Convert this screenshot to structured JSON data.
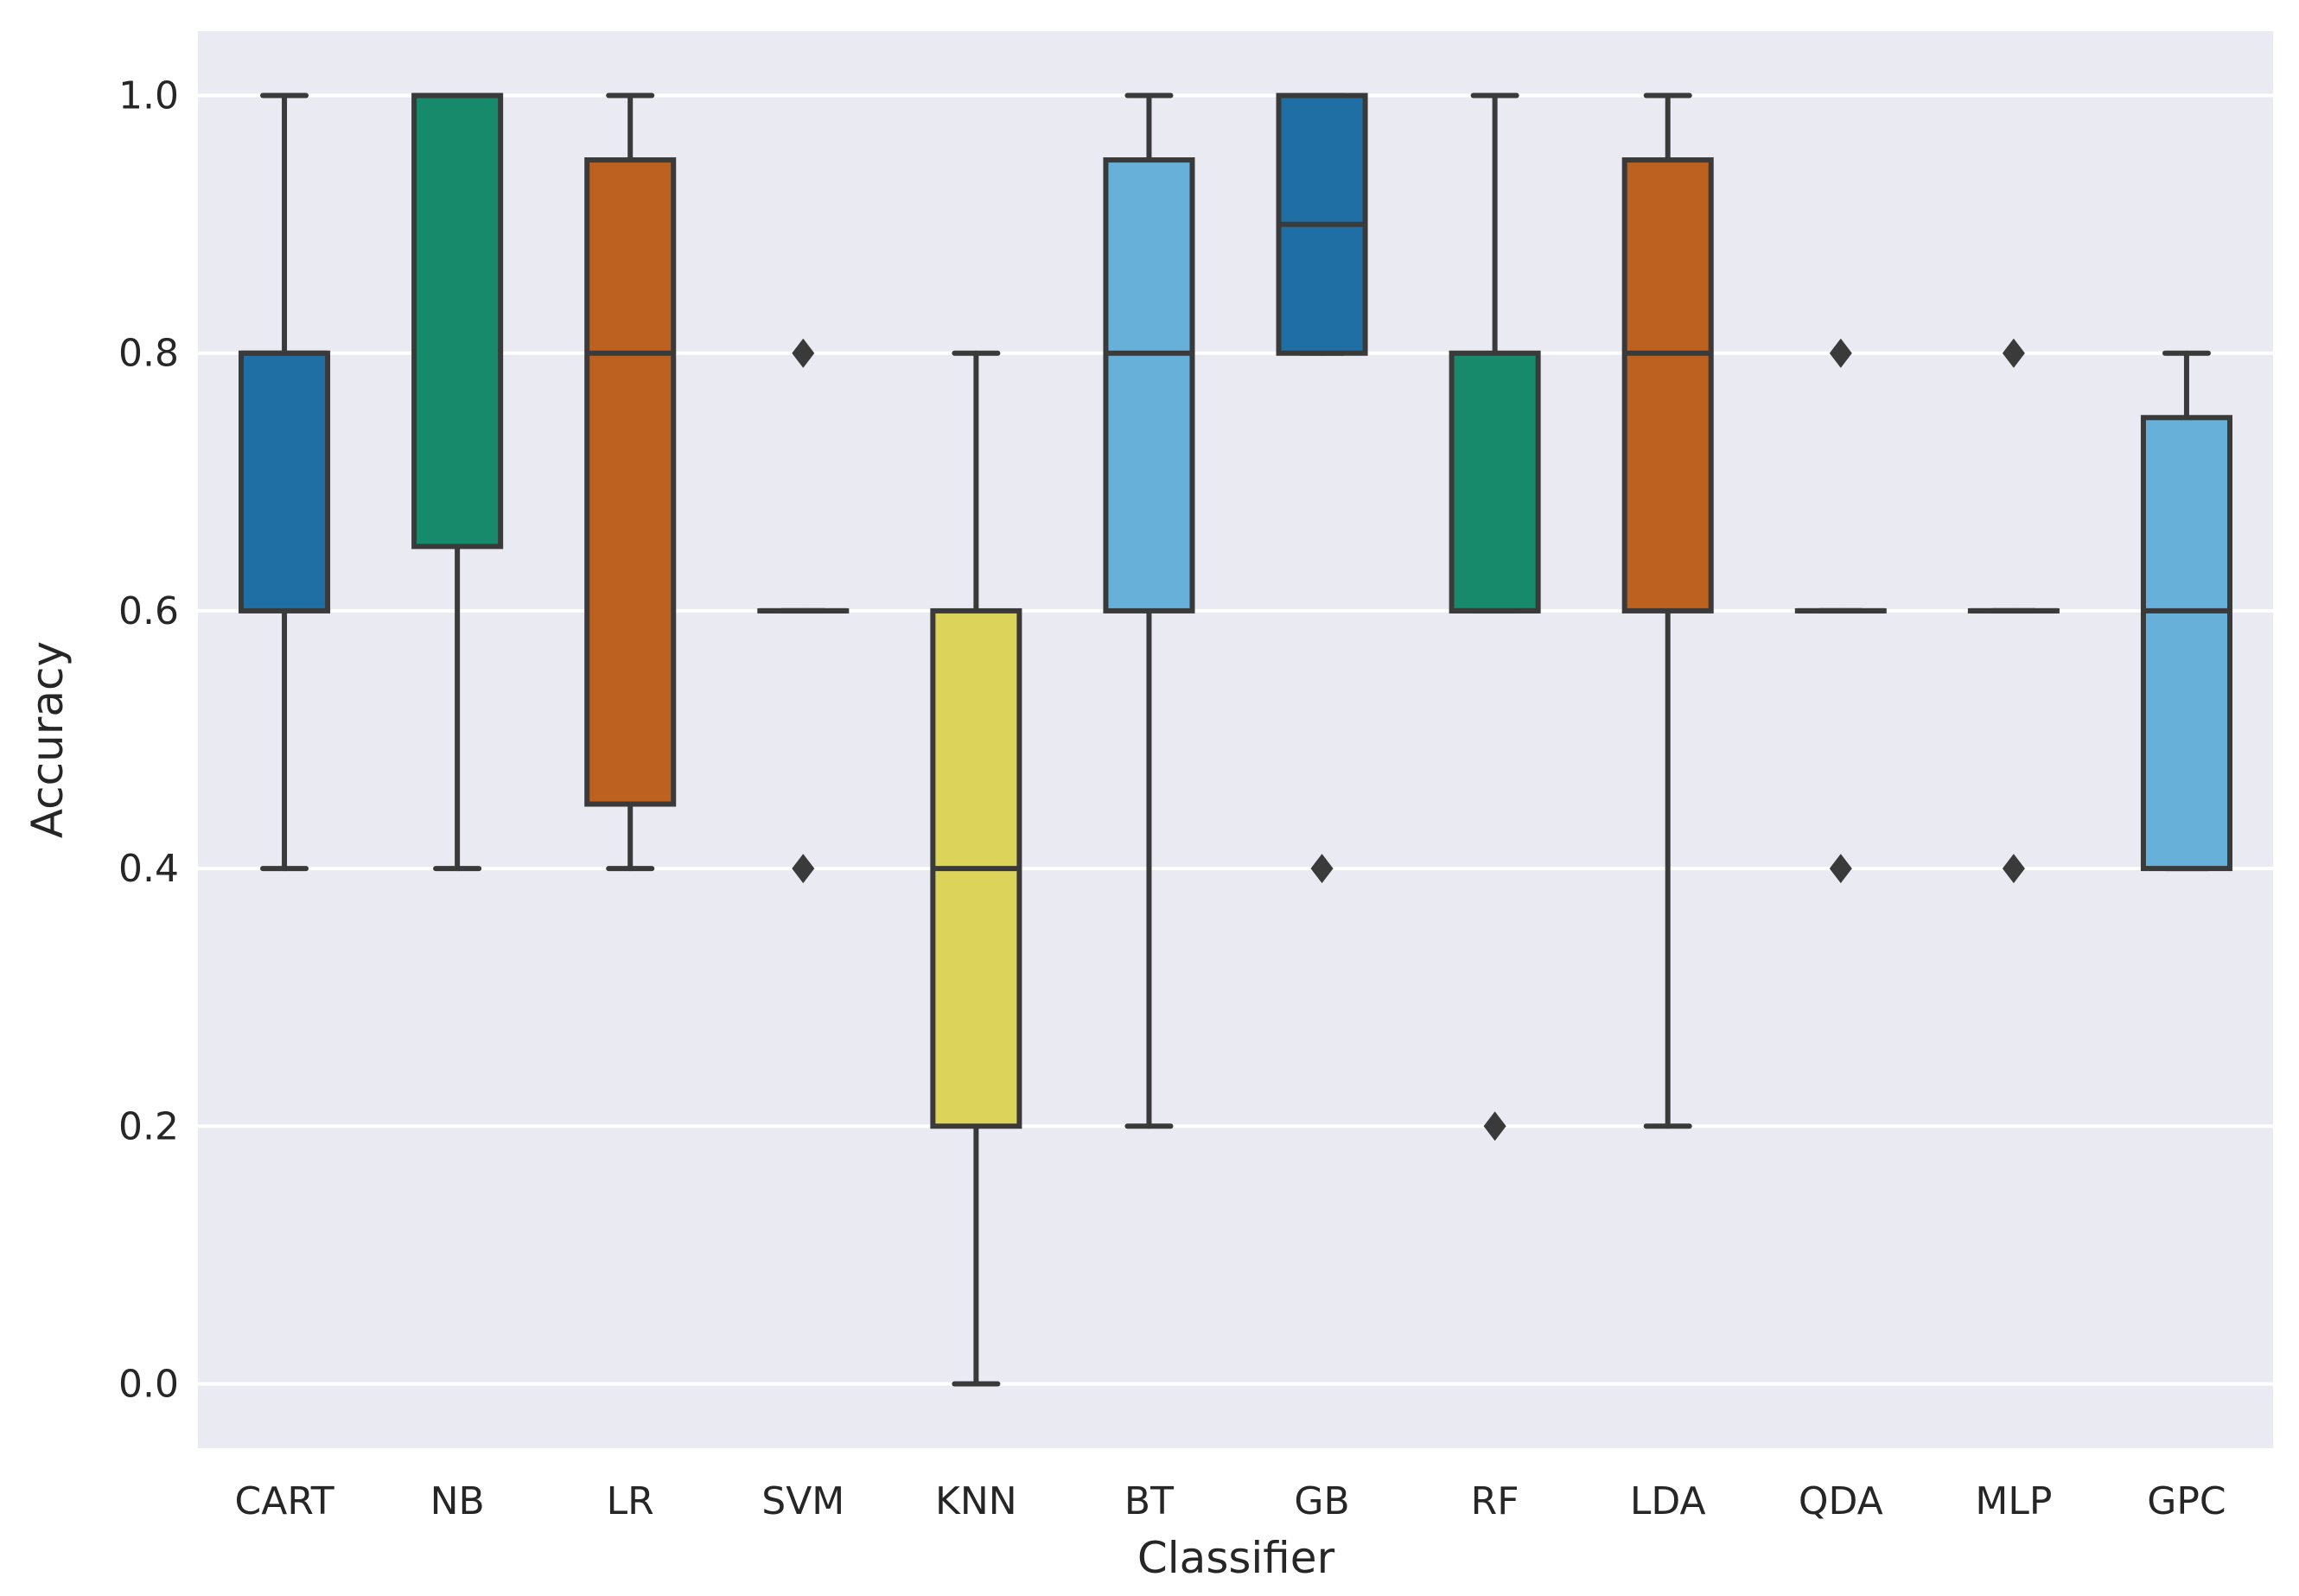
{
  "chart_data": {
    "type": "box",
    "title": "",
    "xlabel": "Classifier",
    "ylabel": "Accuracy",
    "ylim": [
      -0.05,
      1.05
    ],
    "y_ticks": [
      "0.0",
      "0.2",
      "0.4",
      "0.6",
      "0.8",
      "1.0"
    ],
    "grid": true,
    "background": "#eaeaf2",
    "edge_color": "#3a3a3a",
    "categories": [
      "CART",
      "NB",
      "LR",
      "SVM",
      "KNN",
      "BT",
      "GB",
      "RF",
      "LDA",
      "QDA",
      "MLP",
      "GPC"
    ],
    "series": [
      {
        "name": "CART",
        "color": "#1f6fa5",
        "whisker_low": 0.4,
        "q1": 0.6,
        "median": 0.8,
        "q3": 0.8,
        "whisker_high": 1.0,
        "outliers": []
      },
      {
        "name": "NB",
        "color": "#168a6a",
        "whisker_low": 0.4,
        "q1": 0.65,
        "median": 1.0,
        "q3": 1.0,
        "whisker_high": 1.0,
        "outliers": []
      },
      {
        "name": "LR",
        "color": "#bc611f",
        "whisker_low": 0.4,
        "q1": 0.45,
        "median": 0.8,
        "q3": 0.95,
        "whisker_high": 1.0,
        "outliers": []
      },
      {
        "name": "SVM",
        "color": "#cbcbcb",
        "whisker_low": 0.6,
        "q1": 0.6,
        "median": 0.6,
        "q3": 0.6,
        "whisker_high": 0.6,
        "outliers": [
          0.8,
          0.4
        ]
      },
      {
        "name": "KNN",
        "color": "#dbd35a",
        "whisker_low": 0.0,
        "q1": 0.2,
        "median": 0.4,
        "q3": 0.6,
        "whisker_high": 0.8,
        "outliers": []
      },
      {
        "name": "BT",
        "color": "#67b0d9",
        "whisker_low": 0.2,
        "q1": 0.6,
        "median": 0.8,
        "q3": 0.95,
        "whisker_high": 1.0,
        "outliers": []
      },
      {
        "name": "GB",
        "color": "#1f6fa5",
        "whisker_low": 0.8,
        "q1": 0.8,
        "median": 0.9,
        "q3": 1.0,
        "whisker_high": 1.0,
        "outliers": [
          0.4
        ]
      },
      {
        "name": "RF",
        "color": "#168a6a",
        "whisker_low": 0.6,
        "q1": 0.6,
        "median": 0.6,
        "q3": 0.8,
        "whisker_high": 1.0,
        "outliers": [
          0.2
        ]
      },
      {
        "name": "LDA",
        "color": "#bc611f",
        "whisker_low": 0.2,
        "q1": 0.6,
        "median": 0.8,
        "q3": 0.95,
        "whisker_high": 1.0,
        "outliers": []
      },
      {
        "name": "QDA",
        "color": "#cbcbcb",
        "whisker_low": 0.6,
        "q1": 0.6,
        "median": 0.6,
        "q3": 0.6,
        "whisker_high": 0.6,
        "outliers": [
          0.8,
          0.4
        ]
      },
      {
        "name": "MLP",
        "color": "#cbcbcb",
        "whisker_low": 0.6,
        "q1": 0.6,
        "median": 0.6,
        "q3": 0.6,
        "whisker_high": 0.6,
        "outliers": [
          0.8,
          0.4
        ]
      },
      {
        "name": "GPC",
        "color": "#67b0d9",
        "whisker_low": 0.4,
        "q1": 0.4,
        "median": 0.6,
        "q3": 0.75,
        "whisker_high": 0.8,
        "outliers": []
      }
    ]
  }
}
